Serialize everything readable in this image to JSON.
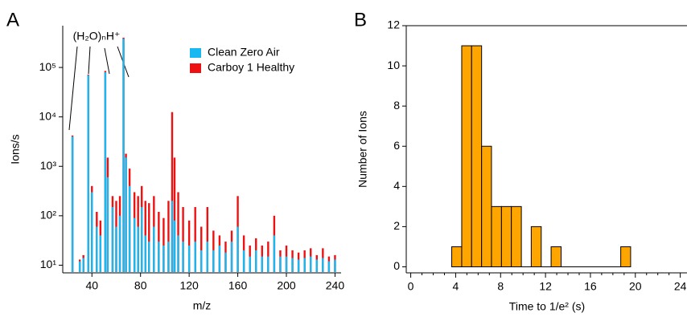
{
  "chart_data": [
    {
      "type": "bar",
      "panel_label": "A",
      "xlabel": "m/z",
      "ylabel": "Ions/s",
      "annotation": "(H₂O)ₙH⁺",
      "log_y": true,
      "legend": "top-right",
      "x": [
        24,
        30,
        33,
        37,
        40,
        44,
        47,
        51,
        53,
        57,
        60,
        63,
        66,
        68,
        71,
        75,
        78,
        81,
        84,
        87,
        91,
        95,
        99,
        103,
        106,
        108,
        111,
        115,
        120,
        125,
        130,
        135,
        140,
        145,
        150,
        155,
        160,
        165,
        170,
        175,
        180,
        185,
        190,
        195,
        200,
        205,
        210,
        215,
        220,
        225,
        230,
        235,
        240
      ],
      "series": [
        {
          "name": "Carboy 1 Healthy",
          "color": "#ee1111",
          "values": [
            4200,
            13,
            16,
            72000,
            400,
            120,
            80,
            85000,
            1500,
            250,
            200,
            250,
            400000,
            1800,
            900,
            300,
            250,
            400,
            200,
            180,
            250,
            120,
            90,
            200,
            12500,
            1500,
            300,
            150,
            80,
            150,
            60,
            150,
            50,
            40,
            30,
            50,
            250,
            40,
            25,
            35,
            25,
            30,
            100,
            20,
            25,
            20,
            18,
            20,
            22,
            16,
            22,
            15,
            16
          ]
        },
        {
          "name": "Clean Zero Air",
          "color": "#1ab8f0",
          "values": [
            4000,
            12,
            14,
            70000,
            300,
            60,
            40,
            80000,
            600,
            150,
            60,
            100,
            380000,
            1500,
            400,
            90,
            60,
            150,
            40,
            30,
            60,
            30,
            25,
            30,
            200,
            80,
            40,
            30,
            25,
            30,
            20,
            30,
            20,
            25,
            18,
            30,
            60,
            20,
            15,
            20,
            15,
            15,
            40,
            15,
            15,
            14,
            13,
            14,
            15,
            13,
            14,
            12,
            13
          ]
        }
      ],
      "xlim": [
        16,
        245
      ],
      "xticks": [
        40,
        80,
        120,
        160,
        200,
        240
      ],
      "ylim": [
        7,
        700000
      ],
      "yticks": [
        {
          "value": 10,
          "label": "10¹"
        },
        {
          "value": 100,
          "label": "10²"
        },
        {
          "value": 1000,
          "label": "10³"
        },
        {
          "value": 10000,
          "label": "10⁴"
        },
        {
          "value": 100000,
          "label": "10⁵"
        }
      ]
    },
    {
      "type": "histogram",
      "panel_label": "B",
      "xlabel": "Time to 1/e² (s)",
      "ylabel": "Number of Ions",
      "color": "#ffa500",
      "bins": [
        3.65,
        4.54,
        5.42,
        6.31,
        7.19,
        8.08,
        8.96,
        9.85,
        10.73,
        11.62,
        12.5,
        13.39,
        14.27,
        15.16,
        16.04,
        16.93,
        17.81,
        18.7,
        19.58
      ],
      "counts": [
        1,
        11,
        11,
        6,
        3,
        3,
        3,
        0,
        2,
        0,
        1,
        0,
        0,
        0,
        0,
        0,
        0,
        1
      ],
      "xlim": [
        -0.4,
        24.6
      ],
      "xticks": [
        0,
        4,
        8,
        12,
        16,
        20,
        24
      ],
      "xminorticks": [
        1,
        2,
        3,
        5,
        6,
        7,
        9,
        10,
        11,
        13,
        14,
        15,
        17,
        18,
        19,
        21,
        22,
        23
      ],
      "ylim": [
        -0.3,
        12
      ],
      "yticks": [
        0,
        2,
        4,
        6,
        8,
        10,
        12
      ]
    }
  ]
}
